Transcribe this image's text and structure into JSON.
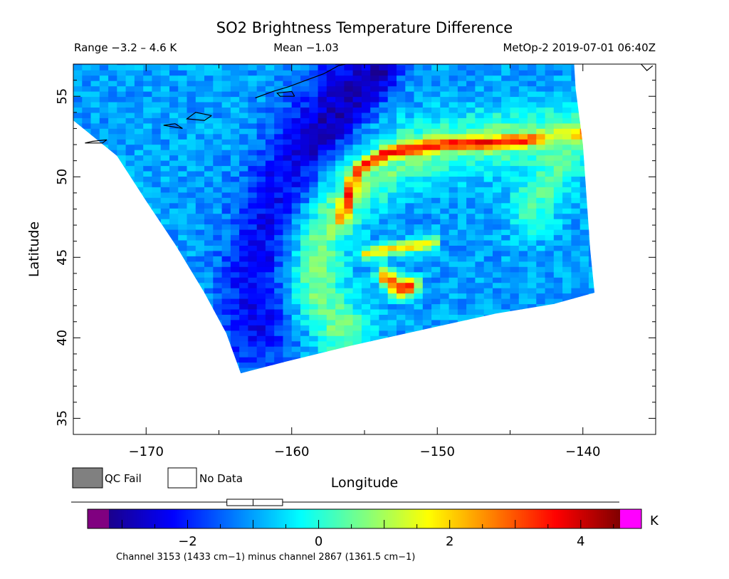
{
  "chart_data": {
    "type": "heatmap",
    "title": "SO2 Brightness Temperature Difference",
    "range_label": "Range −3.2 – 4.6 K",
    "mean_label": "Mean −1.03",
    "source_label": "MetOp-2 2019-07-01 06:40Z",
    "xlabel": "Longitude",
    "ylabel": "Latitude",
    "xlim": [
      -175,
      -135
    ],
    "ylim": [
      34,
      57
    ],
    "x_ticks": [
      -170,
      -160,
      -150,
      -140
    ],
    "y_ticks": [
      35,
      40,
      45,
      50,
      55
    ],
    "swath_outline_lonlat": [
      [
        -175.0,
        53.5
      ],
      [
        -172.0,
        51.3
      ],
      [
        -170.0,
        48.5
      ],
      [
        -168.0,
        45.8
      ],
      [
        -166.0,
        42.8
      ],
      [
        -164.5,
        40.3
      ],
      [
        -163.5,
        37.8
      ],
      [
        -160.5,
        38.5
      ],
      [
        -156.0,
        39.5
      ],
      [
        -151.0,
        40.5
      ],
      [
        -146.0,
        41.5
      ],
      [
        -142.0,
        42.1
      ],
      [
        -139.2,
        42.8
      ],
      [
        -139.5,
        45.5
      ],
      [
        -140.0,
        52.0
      ],
      [
        -140.5,
        55.5
      ],
      [
        -140.6,
        57.0
      ],
      [
        -175.0,
        57.0
      ]
    ],
    "features": [
      {
        "name": "background",
        "value": -1.0
      },
      {
        "name": "dark band",
        "value": -2.3,
        "path": [
          [
            -155.5,
            57
          ],
          [
            -158.5,
            53
          ],
          [
            -161,
            49
          ],
          [
            -162.5,
            44
          ],
          [
            -162.5,
            40.5
          ]
        ],
        "width": 3.0
      },
      {
        "name": "SO2 plume core",
        "value": -2.9,
        "path": [
          [
            -154,
            56.5
          ],
          [
            -156,
            54.5
          ],
          [
            -158.5,
            52.2
          ]
        ],
        "width": 1.4
      },
      {
        "name": "bright arc",
        "value": 0.6,
        "path": [
          [
            -139.8,
            52.6
          ],
          [
            -146,
            52.3
          ],
          [
            -152,
            51.6
          ],
          [
            -156,
            49
          ],
          [
            -158,
            46
          ],
          [
            -158.3,
            43
          ],
          [
            -156.5,
            40.5
          ]
        ],
        "width": 2.2
      },
      {
        "name": "hot streak north",
        "value": 3.6,
        "path": [
          [
            -139.8,
            52.7
          ],
          [
            -145,
            52.2
          ],
          [
            -150,
            52.0
          ],
          [
            -153.5,
            51.5
          ],
          [
            -155.5,
            50.4
          ],
          [
            -156,
            49.2
          ],
          [
            -156.5,
            47.5
          ]
        ],
        "width": 0.45
      },
      {
        "name": "hot streak mid",
        "value": 1.9,
        "path": [
          [
            -155,
            45.2
          ],
          [
            -152.5,
            45.6
          ],
          [
            -150.3,
            45.9
          ]
        ],
        "width": 0.45
      },
      {
        "name": "hot blob south",
        "value": 3.2,
        "path": [
          [
            -153.5,
            43.8
          ],
          [
            -152.5,
            43.0
          ],
          [
            -151.8,
            43.2
          ]
        ],
        "width": 0.7
      },
      {
        "name": "east light patch",
        "value": 0.3,
        "path": [
          [
            -141.5,
            51.5
          ],
          [
            -142.5,
            49.5
          ],
          [
            -143.5,
            48.0
          ]
        ],
        "width": 2.0
      }
    ],
    "colorbar": {
      "min": -3.2,
      "max": 4.6,
      "ticks": [
        -2,
        0,
        2,
        4
      ],
      "unit": "K",
      "colors": [
        "#1a008c",
        "#0000ff",
        "#0080ff",
        "#00ffff",
        "#80ff80",
        "#ffff00",
        "#ff8000",
        "#ff0000",
        "#800000"
      ],
      "under_color": "#800080",
      "over_color": "#ff00ff",
      "box_range": [
        -1.4,
        -0.55
      ],
      "median": -1.0
    },
    "legend": [
      {
        "label": "QC Fail",
        "color": "#808080"
      },
      {
        "label": "No Data",
        "color": "#ffffff"
      }
    ],
    "channel_note": "Channel 3153 (1433 cm−1) minus channel 2867 (1361.5 cm−1)"
  }
}
